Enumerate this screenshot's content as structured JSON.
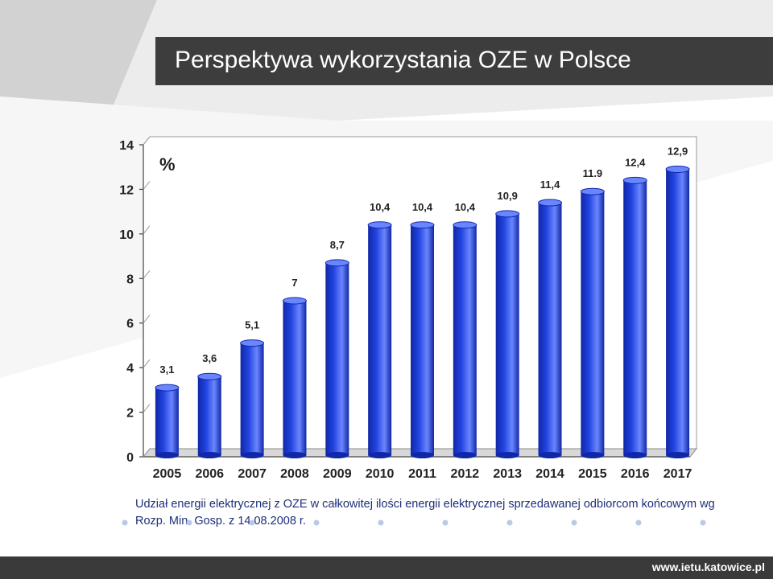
{
  "slide": {
    "title": "Perspektywa wykorzystania OZE w Polsce",
    "caption": "Udział energii elektrycznej z OZE w całkowitej ilości energii elektrycznej sprzedawanej odbiorcom końcowym wg Rozp. Min. Gosp. z 14.08.2008 r.",
    "footer": "www.ietu.katowice.pl"
  },
  "colors": {
    "bar": "#2244e0",
    "bar_dark": "#1028a8",
    "bar_light": "#6a86ff",
    "title_bg": "#3d3d3d",
    "footer_bg": "#3a3a3a",
    "caption_text": "#1c2f7a"
  },
  "chart_data": {
    "type": "bar",
    "title": "",
    "xlabel": "",
    "ylabel": "%",
    "categories": [
      "2005",
      "2006",
      "2007",
      "2008",
      "2009",
      "2010",
      "2011",
      "2012",
      "2013",
      "2014",
      "2015",
      "2016",
      "2017"
    ],
    "values": [
      3.1,
      3.6,
      5.1,
      7,
      8.7,
      10.4,
      10.4,
      10.4,
      10.9,
      11.4,
      11.9,
      12.4,
      12.9
    ],
    "data_labels": [
      "3,1",
      "3,6",
      "5,1",
      "7",
      "8,7",
      "10,4",
      "10,4",
      "10,4",
      "10,9",
      "11,4",
      "11.9",
      "12,4",
      "12,9"
    ],
    "ylim": [
      0,
      14
    ],
    "yticks": [
      0,
      2,
      4,
      6,
      8,
      10,
      12,
      14
    ],
    "grid": false,
    "legend": "none"
  }
}
